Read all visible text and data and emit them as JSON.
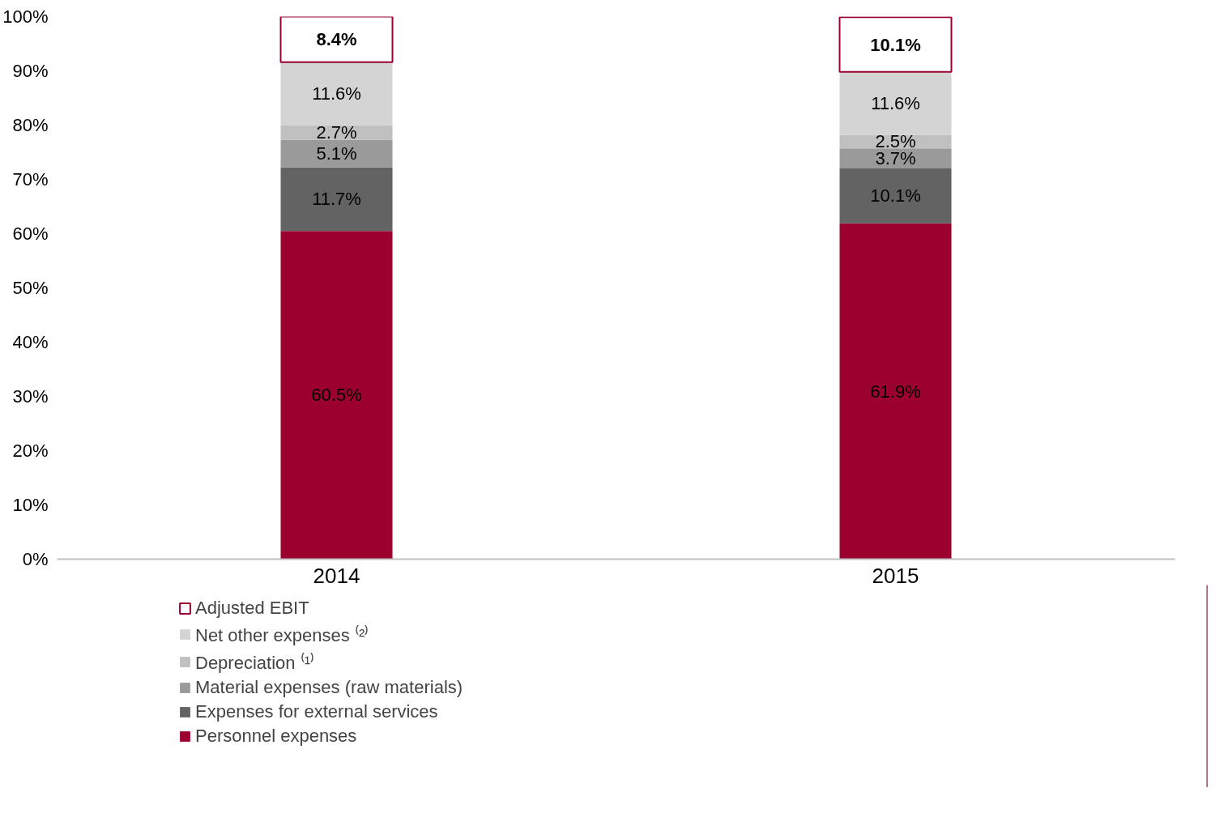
{
  "chart_data": {
    "type": "bar",
    "stacked": true,
    "categories": [
      "2014",
      "2015"
    ],
    "series": [
      {
        "name": "Personnel expenses",
        "color": "#9b002f",
        "values": [
          60.5,
          61.9
        ],
        "value_labels": [
          "60.5%",
          "61.9%"
        ]
      },
      {
        "name": "Expenses for external services",
        "color": "#636363",
        "values": [
          11.7,
          10.1
        ],
        "value_labels": [
          "11.7%",
          "10.1%"
        ]
      },
      {
        "name": "Material expenses (raw materials)",
        "color": "#9a9a9a",
        "values": [
          5.1,
          3.7
        ],
        "value_labels": [
          "5.1%",
          "3.7%"
        ]
      },
      {
        "name": "Depreciation ⁽¹⁾",
        "color": "#c0c0c0",
        "values": [
          2.7,
          2.5
        ],
        "value_labels": [
          "2.7%",
          "2.5%"
        ]
      },
      {
        "name": "Net other expenses ⁽²⁾",
        "color": "#d4d4d4",
        "values": [
          11.6,
          11.6
        ],
        "value_labels": [
          "11.6%",
          "11.6%"
        ]
      },
      {
        "name": "Adjusted EBIT",
        "color": "#ffffff",
        "values": [
          8.4,
          10.1
        ],
        "value_labels": [
          "8.4%",
          "10.1%"
        ]
      }
    ],
    "ylim": [
      0,
      100
    ],
    "yticks": [
      {
        "value": 0,
        "label": "0%"
      },
      {
        "value": 10,
        "label": "10%"
      },
      {
        "value": 20,
        "label": "20%"
      },
      {
        "value": 30,
        "label": "30%"
      },
      {
        "value": 40,
        "label": "40%"
      },
      {
        "value": 50,
        "label": "50%"
      },
      {
        "value": 60,
        "label": "60%"
      },
      {
        "value": 70,
        "label": "70%"
      },
      {
        "value": 80,
        "label": "80%"
      },
      {
        "value": 90,
        "label": "90%"
      },
      {
        "value": 100,
        "label": "100%"
      }
    ],
    "grid": false,
    "legend": "bottom left"
  }
}
